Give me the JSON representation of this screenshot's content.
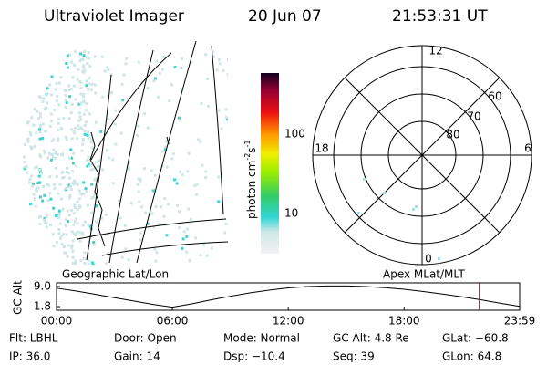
{
  "header": {
    "instrument": "Ultraviolet Imager",
    "date": "20 Jun 07",
    "time": "21:53:31 UT"
  },
  "colorbar": {
    "unit": "photon cm",
    "exp1": "-2",
    "unit2": "s",
    "exp2": "-1",
    "ticks": [
      "100",
      "10"
    ]
  },
  "polar": {
    "mlt_labels": [
      "12",
      "18",
      "6",
      "0"
    ],
    "mlat_labels": [
      "60",
      "70",
      "80"
    ]
  },
  "panel_labels": {
    "left": "Geographic Lat/Lon",
    "right": "Apex MLat/MLT"
  },
  "chart_data": {
    "type": "line",
    "y_label": "GC Alt",
    "x": [
      0,
      1,
      2,
      3,
      4,
      5,
      6,
      7,
      8,
      9,
      10,
      11,
      12,
      13,
      14,
      15,
      16,
      17,
      18,
      19,
      20,
      21,
      22,
      23,
      23.98
    ],
    "series": [
      {
        "color": "#000000",
        "values": [
          8.4,
          7.4,
          6.2,
          5.0,
          3.8,
          2.6,
          1.6,
          2.8,
          4.2,
          5.5,
          6.7,
          7.7,
          8.5,
          9.0,
          9.2,
          9.2,
          9.0,
          8.6,
          8.0,
          7.2,
          6.3,
          5.3,
          4.2,
          3.0,
          1.9
        ]
      }
    ],
    "marker": {
      "x": 21.89,
      "color": "#c00000"
    },
    "xlim": [
      0,
      23.983
    ],
    "ylim": [
      0.5,
      10.3
    ],
    "xticks": [
      {
        "value": 0,
        "label": "00:00"
      },
      {
        "value": 6,
        "label": "06:00"
      },
      {
        "value": 12,
        "label": "12:00"
      },
      {
        "value": 18,
        "label": "18:00"
      },
      {
        "value": 23.983,
        "label": "23:59"
      }
    ],
    "yticks": [
      {
        "value": 9,
        "label": "9.0"
      },
      {
        "value": 1.8,
        "label": "1.8"
      }
    ]
  },
  "status": {
    "rows": [
      [
        "Flt: LBHL",
        "Door: Open",
        "Mode: Normal",
        "GC Alt: 4.8 Re",
        "GLat: −60.8"
      ],
      [
        "IP: 36.0",
        "Gain: 14",
        "Dsp: −10.4",
        "Seq: 39",
        "GLon: 64.8"
      ]
    ]
  }
}
